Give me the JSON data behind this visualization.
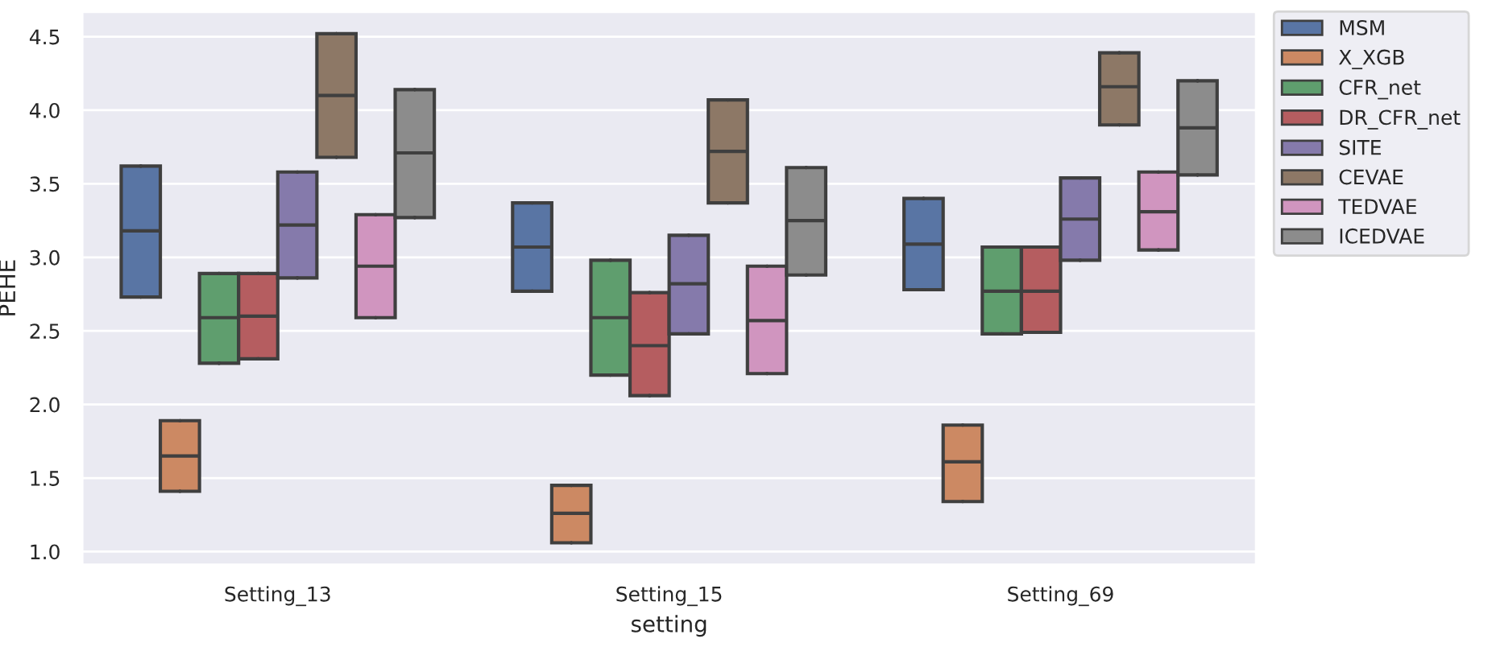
{
  "chart_data": {
    "type": "box",
    "xlabel": "setting",
    "ylabel": "PEHE",
    "categories": [
      "Setting_13",
      "Setting_15",
      "Setting_69"
    ],
    "ylim": [
      0.91,
      4.67
    ],
    "yticks": [
      {
        "value": 1.0,
        "label": "1.0"
      },
      1.5,
      {
        "value": 2.0,
        "label": "2.0"
      },
      2.5,
      {
        "value": 3.0,
        "label": "3.0"
      },
      3.5,
      {
        "value": 4.0,
        "label": "4.0"
      },
      4.5
    ],
    "grid": "y",
    "legend": "top right",
    "series": [
      {
        "name": "MSM",
        "color": "#5975a4",
        "boxes": [
          {
            "low": 2.73,
            "q1": 2.73,
            "median": 3.18,
            "q3": 3.62,
            "high": 3.62
          },
          {
            "low": 2.77,
            "q1": 2.77,
            "median": 3.07,
            "q3": 3.37,
            "high": 3.37
          },
          {
            "low": 2.78,
            "q1": 2.78,
            "median": 3.09,
            "q3": 3.4,
            "high": 3.4
          }
        ]
      },
      {
        "name": "X_XGB",
        "color": "#cc8963",
        "boxes": [
          {
            "low": 1.41,
            "q1": 1.41,
            "median": 1.65,
            "q3": 1.89,
            "high": 1.89
          },
          {
            "low": 1.06,
            "q1": 1.06,
            "median": 1.26,
            "q3": 1.45,
            "high": 1.45
          },
          {
            "low": 1.34,
            "q1": 1.34,
            "median": 1.61,
            "q3": 1.86,
            "high": 1.86
          }
        ]
      },
      {
        "name": "CFR_net",
        "color": "#5f9e6e",
        "boxes": [
          {
            "low": 2.28,
            "q1": 2.28,
            "median": 2.59,
            "q3": 2.89,
            "high": 2.89
          },
          {
            "low": 2.2,
            "q1": 2.2,
            "median": 2.59,
            "q3": 2.98,
            "high": 2.98
          },
          {
            "low": 2.48,
            "q1": 2.48,
            "median": 2.77,
            "q3": 3.07,
            "high": 3.07
          }
        ]
      },
      {
        "name": "DR_CFR_net",
        "color": "#b55d60",
        "boxes": [
          {
            "low": 2.31,
            "q1": 2.31,
            "median": 2.6,
            "q3": 2.89,
            "high": 2.89
          },
          {
            "low": 2.06,
            "q1": 2.06,
            "median": 2.4,
            "q3": 2.76,
            "high": 2.76
          },
          {
            "low": 2.49,
            "q1": 2.49,
            "median": 2.77,
            "q3": 3.07,
            "high": 3.07
          }
        ]
      },
      {
        "name": "SITE",
        "color": "#857aab",
        "boxes": [
          {
            "low": 2.86,
            "q1": 2.86,
            "median": 3.22,
            "q3": 3.58,
            "high": 3.58
          },
          {
            "low": 2.48,
            "q1": 2.48,
            "median": 2.82,
            "q3": 3.15,
            "high": 3.15
          },
          {
            "low": 2.98,
            "q1": 2.98,
            "median": 3.26,
            "q3": 3.54,
            "high": 3.54
          }
        ]
      },
      {
        "name": "CEVAE",
        "color": "#8d7866",
        "boxes": [
          {
            "low": 3.68,
            "q1": 3.68,
            "median": 4.1,
            "q3": 4.52,
            "high": 4.52
          },
          {
            "low": 3.37,
            "q1": 3.37,
            "median": 3.72,
            "q3": 4.07,
            "high": 4.07
          },
          {
            "low": 3.9,
            "q1": 3.9,
            "median": 4.16,
            "q3": 4.39,
            "high": 4.39
          }
        ]
      },
      {
        "name": "TEDVAE",
        "color": "#d095bf",
        "boxes": [
          {
            "low": 2.59,
            "q1": 2.59,
            "median": 2.94,
            "q3": 3.29,
            "high": 3.29
          },
          {
            "low": 2.21,
            "q1": 2.21,
            "median": 2.57,
            "q3": 2.94,
            "high": 2.94
          },
          {
            "low": 3.05,
            "q1": 3.05,
            "median": 3.31,
            "q3": 3.58,
            "high": 3.58
          }
        ]
      },
      {
        "name": "ICEDVAE",
        "color": "#8c8c8c",
        "boxes": [
          {
            "low": 3.27,
            "q1": 3.27,
            "median": 3.71,
            "q3": 4.14,
            "high": 4.14
          },
          {
            "low": 2.88,
            "q1": 2.88,
            "median": 3.25,
            "q3": 3.61,
            "high": 3.61
          },
          {
            "low": 3.56,
            "q1": 3.56,
            "median": 3.88,
            "q3": 4.2,
            "high": 4.2
          }
        ]
      }
    ]
  }
}
